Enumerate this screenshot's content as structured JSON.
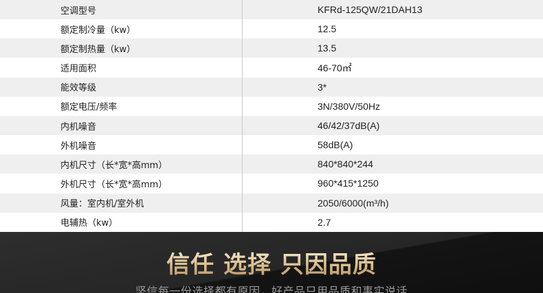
{
  "specs": [
    {
      "label": "空调型号",
      "value": "KFRd-125QW/21DAH13"
    },
    {
      "label": "额定制冷量（kw）",
      "value": "12.5"
    },
    {
      "label": "额定制热量（kw）",
      "value": "13.5"
    },
    {
      "label": "适用面积",
      "value": "46-70㎡"
    },
    {
      "label": "能效等级",
      "value": "3*"
    },
    {
      "label": "额定电压/频率",
      "value": "3N/380V/50Hz"
    },
    {
      "label": "内机噪音",
      "value": "46/42/37dB(A)"
    },
    {
      "label": "外机噪音",
      "value": "58dB(A)"
    },
    {
      "label": "内机尺寸（长*宽*高mm）",
      "value": "840*840*244"
    },
    {
      "label": "外机尺寸（长*宽*高mm）",
      "value": "960*415*1250"
    },
    {
      "label": "风量：室内机/室外机",
      "value": "2050/6000(m³/h)"
    },
    {
      "label": "电辅热（kw）",
      "value": "2.7"
    }
  ],
  "banner": {
    "title": "信任 选择 只因品质",
    "subtitle": "坚信每一份选择都有原因，好产品只用品质和事实说话"
  }
}
